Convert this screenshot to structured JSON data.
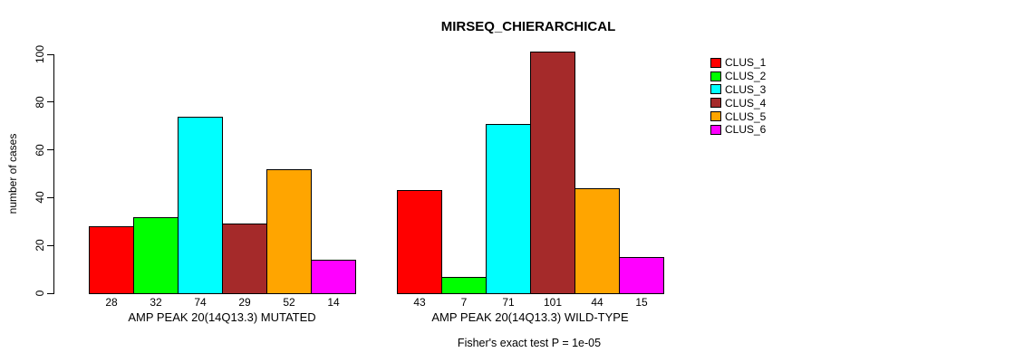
{
  "chart_data": {
    "type": "bar",
    "title": "MIRSEQ_CHIERARCHICAL",
    "ylabel": "number of cases",
    "xlabel": "",
    "ylim": [
      0,
      100
    ],
    "yticks": [
      0,
      20,
      40,
      60,
      80,
      100
    ],
    "grid": false,
    "legend_position": "right-outside",
    "bar_border_color": "#000000",
    "categories": [
      "AMP PEAK 20(14Q13.3) MUTATED",
      "AMP PEAK 20(14Q13.3) WILD-TYPE"
    ],
    "series": [
      {
        "name": "CLUS_1",
        "color": "#FF0000",
        "values": [
          28,
          43
        ]
      },
      {
        "name": "CLUS_2",
        "color": "#00FF00",
        "values": [
          32,
          7
        ]
      },
      {
        "name": "CLUS_3",
        "color": "#00FFFF",
        "values": [
          74,
          71
        ]
      },
      {
        "name": "CLUS_4",
        "color": "#A52A2A",
        "values": [
          29,
          101
        ]
      },
      {
        "name": "CLUS_5",
        "color": "#FFA500",
        "values": [
          52,
          44
        ]
      },
      {
        "name": "CLUS_6",
        "color": "#FF00FF",
        "values": [
          14,
          15
        ]
      }
    ],
    "bar_value_labels": {
      "AMP PEAK 20(14Q13.3) MUTATED": [
        28,
        32,
        74,
        29,
        52,
        14
      ],
      "AMP PEAK 20(14Q13.3) WILD-TYPE": [
        43,
        7,
        71,
        101,
        44,
        15
      ]
    },
    "annotation": "Fisher's exact test P = 1e-05"
  }
}
